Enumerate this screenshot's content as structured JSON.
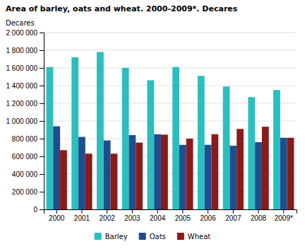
{
  "chart_data": {
    "type": "bar",
    "title": "Area of barley, oats and wheat. 2000-2009*. Decares",
    "ylabel": "Decares",
    "categories": [
      "2000",
      "2001",
      "2002",
      "2003",
      "2004",
      "2005",
      "2006",
      "2007",
      "2008",
      "2009*"
    ],
    "series": [
      {
        "name": "Barley",
        "color": "#2ABFBF",
        "values": [
          1610000,
          1720000,
          1780000,
          1600000,
          1460000,
          1610000,
          1510000,
          1390000,
          1270000,
          1350000
        ]
      },
      {
        "name": "Oats",
        "color": "#1F4E8F",
        "values": [
          940000,
          820000,
          780000,
          840000,
          850000,
          730000,
          730000,
          720000,
          760000,
          810000
        ]
      },
      {
        "name": "Wheat",
        "color": "#8B1A1A",
        "values": [
          670000,
          630000,
          630000,
          755000,
          845000,
          800000,
          850000,
          910000,
          935000,
          810000
        ]
      }
    ],
    "ylim": [
      0,
      2000000
    ],
    "yticks": [
      0,
      {
        "value": 200000,
        "label": "200 000"
      },
      {
        "value": 400000,
        "label": "400 000"
      },
      {
        "value": 600000,
        "label": "600 000"
      },
      {
        "value": 800000,
        "label": "800 000"
      },
      {
        "value": 1000000,
        "label": "1 000 000"
      },
      {
        "value": 1200000,
        "label": "1 200 000"
      },
      {
        "value": 1400000,
        "label": "1 400 000"
      },
      {
        "value": 1600000,
        "label": "1 600 000"
      },
      {
        "value": 1800000,
        "label": "1 800 000"
      },
      {
        "value": 2000000,
        "label": "2 000 000"
      }
    ],
    "grid": true,
    "legend": "bottom"
  }
}
